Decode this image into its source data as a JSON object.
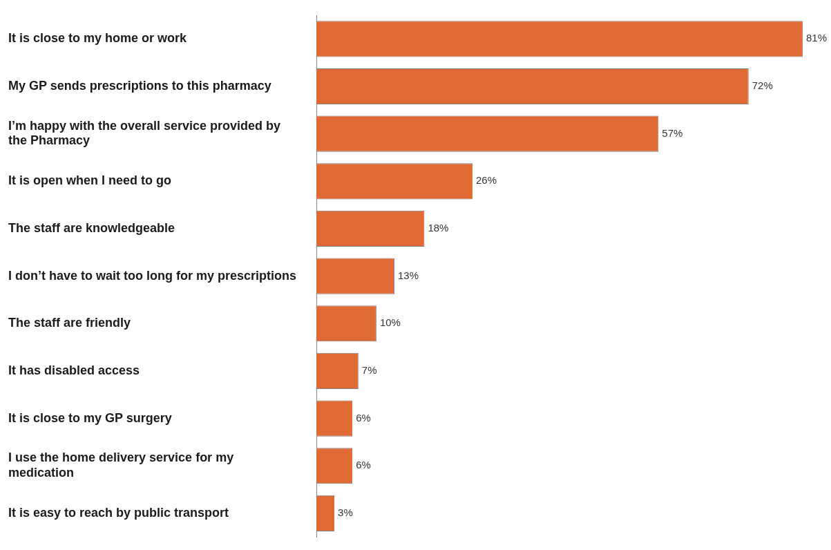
{
  "chart_data": {
    "type": "bar",
    "orientation": "horizontal",
    "categories": [
      "It is close to my home or work",
      "My GP sends prescriptions to this pharmacy",
      "I’m happy with the overall service provided by the Pharmacy",
      "It is open when I need to go",
      "The staff are knowledgeable",
      "I don’t have to wait too long for my prescriptions",
      "The staff are friendly",
      "It has disabled access",
      "It is close to my GP surgery",
      "I use the home delivery service for my medication",
      "It is easy to reach by public transport"
    ],
    "values": [
      81,
      72,
      57,
      26,
      18,
      13,
      10,
      7,
      6,
      6,
      3
    ],
    "value_labels": [
      "81%",
      "72%",
      "57%",
      "26%",
      "18%",
      "13%",
      "10%",
      "7%",
      "6%",
      "6%",
      "3%"
    ],
    "color": "#e06a35",
    "grid": false,
    "legend": false
  }
}
